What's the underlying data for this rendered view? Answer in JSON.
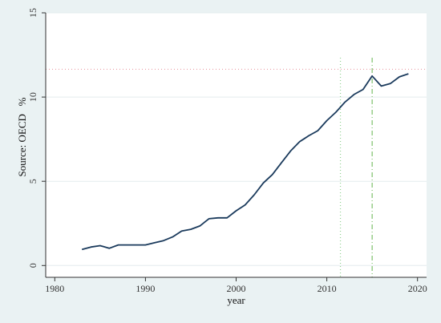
{
  "chart_data": {
    "type": "line",
    "title": "",
    "xlabel": "year",
    "ylabel": "Source: OECD   %",
    "xlim": [
      1979,
      2021
    ],
    "ylim": [
      -0.7,
      15
    ],
    "x_ticks": [
      1980,
      1990,
      2000,
      2010,
      2020
    ],
    "y_ticks": [
      0,
      5,
      10,
      15
    ],
    "grid": "horizontal",
    "series": [
      {
        "color": "#1a3a5c",
        "x": [
          1983,
          1984,
          1985,
          1986,
          1987,
          1988,
          1989,
          1990,
          1991,
          1992,
          1993,
          1994,
          1995,
          1996,
          1997,
          1998,
          1999,
          2000,
          2001,
          2002,
          2003,
          2004,
          2005,
          2006,
          2007,
          2008,
          2009,
          2010,
          2011,
          2012,
          2013,
          2014,
          2015,
          2016,
          2017,
          2018,
          2019
        ],
        "values": [
          0.95,
          1.1,
          1.18,
          1.02,
          1.22,
          1.22,
          1.22,
          1.22,
          1.35,
          1.48,
          1.7,
          2.05,
          2.15,
          2.35,
          2.78,
          2.83,
          2.83,
          3.25,
          3.6,
          4.2,
          4.9,
          5.4,
          6.1,
          6.8,
          7.35,
          7.7,
          8.0,
          8.6,
          9.1,
          9.7,
          10.15,
          10.45,
          11.25,
          10.65,
          10.8,
          11.2,
          11.38
        ]
      }
    ],
    "reference_lines": [
      {
        "orientation": "horizontal",
        "y": 11.65,
        "style": "dotted",
        "color": "#e8909a"
      },
      {
        "orientation": "vertical",
        "x": 2011.5,
        "style": "dotted",
        "color": "#8fd08f"
      },
      {
        "orientation": "vertical",
        "x": 2015,
        "style": "dashed",
        "color": "#7cbf6a"
      }
    ]
  }
}
